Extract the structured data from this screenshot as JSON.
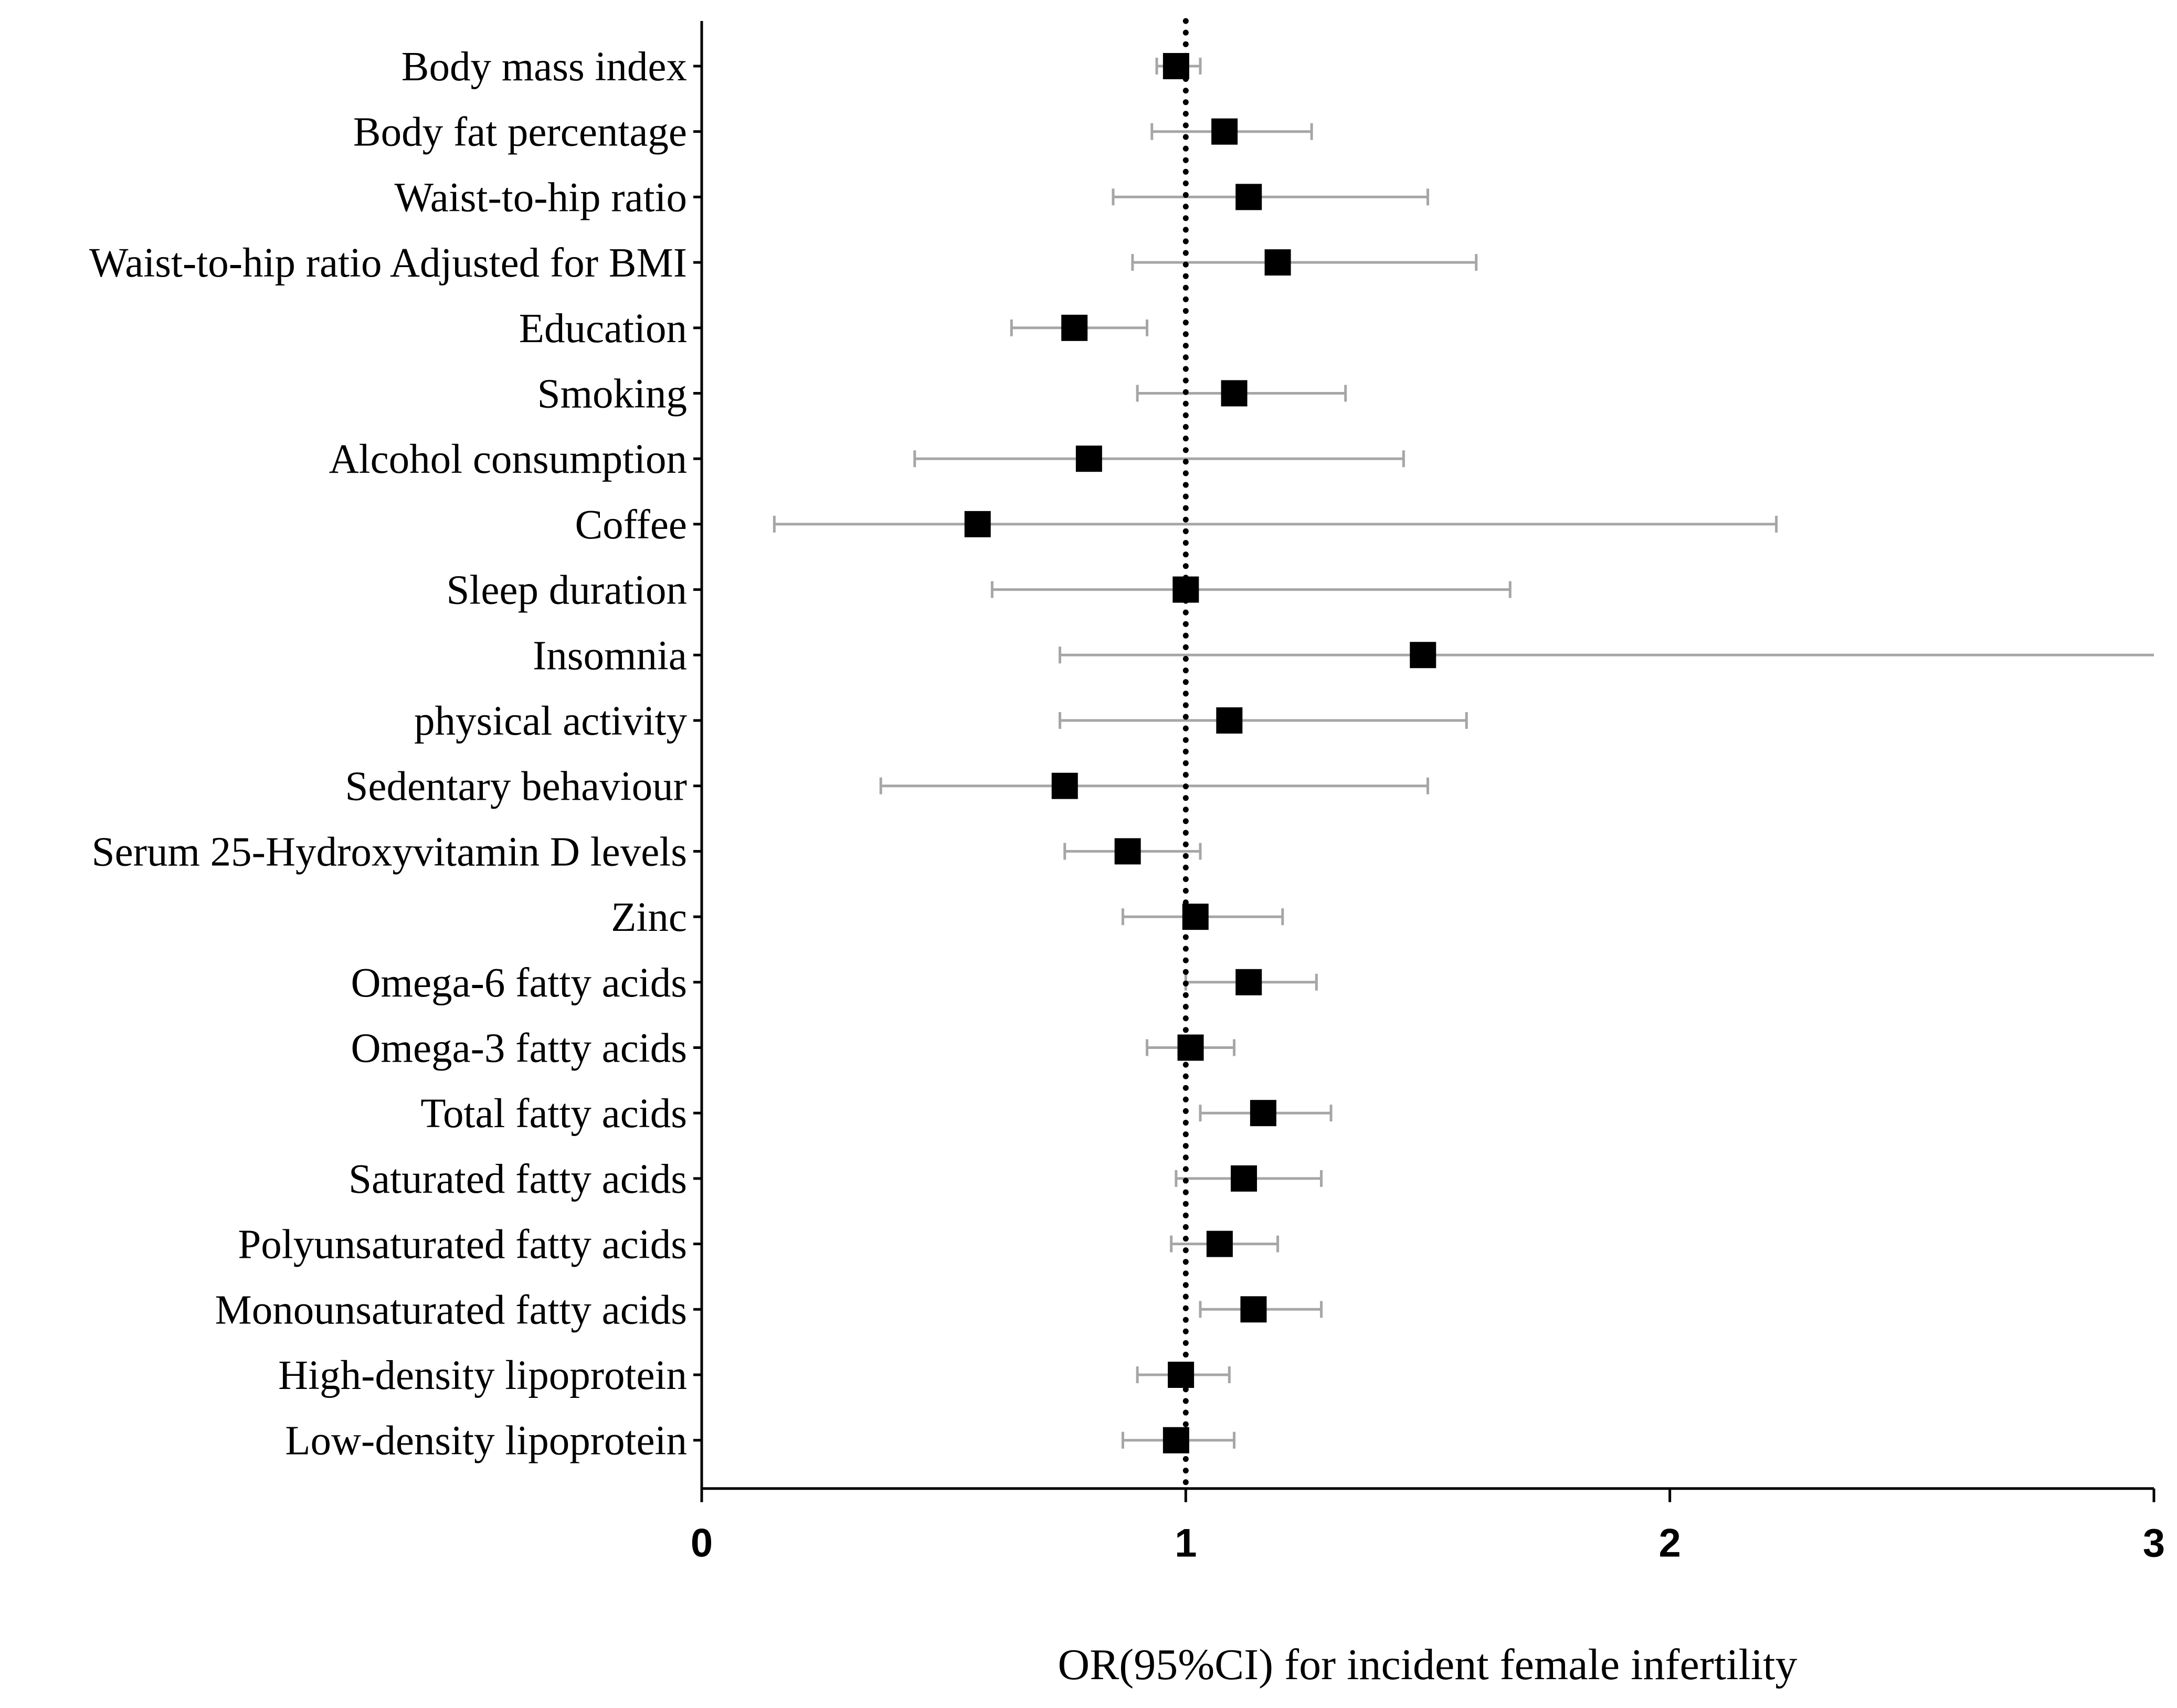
{
  "chart_data": {
    "type": "forest",
    "xlabel": "OR(95%CI) for incident female infertility",
    "xlim": [
      0,
      3
    ],
    "x_ticks": [
      "0",
      "1",
      "2",
      "3"
    ],
    "reference_line": 1,
    "grid": false,
    "colors": {
      "marker": "#000000",
      "ci_line": "#a6a6a6",
      "reference_line": "#000000",
      "axis": "#000000"
    },
    "rows": [
      {
        "label": "Body mass index",
        "or": 0.98,
        "lo": 0.94,
        "hi": 1.03
      },
      {
        "label": "Body fat percentage",
        "or": 1.08,
        "lo": 0.93,
        "hi": 1.26
      },
      {
        "label": "Waist-to-hip ratio",
        "or": 1.13,
        "lo": 0.85,
        "hi": 1.5
      },
      {
        "label": "Waist-to-hip ratio Adjusted for BMI",
        "or": 1.19,
        "lo": 0.89,
        "hi": 1.6
      },
      {
        "label": "Education",
        "or": 0.77,
        "lo": 0.64,
        "hi": 0.92
      },
      {
        "label": "Smoking",
        "or": 1.1,
        "lo": 0.9,
        "hi": 1.33
      },
      {
        "label": "Alcohol consumption",
        "or": 0.8,
        "lo": 0.44,
        "hi": 1.45
      },
      {
        "label": "Coffee",
        "or": 0.57,
        "lo": 0.15,
        "hi": 2.22
      },
      {
        "label": "Sleep duration",
        "or": 1.0,
        "lo": 0.6,
        "hi": 1.67
      },
      {
        "label": "Insomnia",
        "or": 1.49,
        "lo": 0.74,
        "hi": 3.0
      },
      {
        "label": "physical activity",
        "or": 1.09,
        "lo": 0.74,
        "hi": 1.58
      },
      {
        "label": "Sedentary behaviour",
        "or": 0.75,
        "lo": 0.37,
        "hi": 1.5
      },
      {
        "label": "Serum 25-Hydroxyvitamin D levels",
        "or": 0.88,
        "lo": 0.75,
        "hi": 1.03
      },
      {
        "label": "Zinc",
        "or": 1.02,
        "lo": 0.87,
        "hi": 1.2
      },
      {
        "label": "Omega-6 fatty acids",
        "or": 1.13,
        "lo": 1.0,
        "hi": 1.27
      },
      {
        "label": "Omega-3 fatty acids",
        "or": 1.01,
        "lo": 0.92,
        "hi": 1.1
      },
      {
        "label": "Total fatty acids",
        "or": 1.16,
        "lo": 1.03,
        "hi": 1.3
      },
      {
        "label": "Saturated fatty acids",
        "or": 1.12,
        "lo": 0.98,
        "hi": 1.28
      },
      {
        "label": "Polyunsaturated fatty acids",
        "or": 1.07,
        "lo": 0.97,
        "hi": 1.19
      },
      {
        "label": "Monounsaturated fatty acids",
        "or": 1.14,
        "lo": 1.03,
        "hi": 1.28
      },
      {
        "label": "High-density lipoprotein",
        "or": 0.99,
        "lo": 0.9,
        "hi": 1.09
      },
      {
        "label": "Low-density lipoprotein",
        "or": 0.98,
        "lo": 0.87,
        "hi": 1.1
      }
    ]
  }
}
